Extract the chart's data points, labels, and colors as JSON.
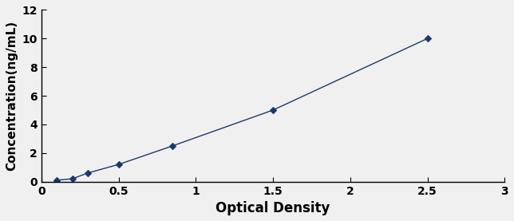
{
  "x": [
    0.1,
    0.2,
    0.3,
    0.5,
    0.85,
    1.5,
    2.5
  ],
  "y": [
    0.1,
    0.2,
    0.6,
    1.2,
    2.5,
    5.0,
    10.0
  ],
  "line_color": "#1a3a6b",
  "marker_color": "#1a3a6b",
  "marker_style": "D",
  "marker_size": 4,
  "line_width": 1.0,
  "xlabel": "Optical Density",
  "ylabel": "Concentration(ng/mL)",
  "xlim": [
    0,
    3
  ],
  "ylim": [
    0,
    12
  ],
  "xticks": [
    0,
    0.5,
    1,
    1.5,
    2,
    2.5,
    3
  ],
  "yticks": [
    0,
    2,
    4,
    6,
    8,
    10,
    12
  ],
  "xlabel_fontsize": 12,
  "ylabel_fontsize": 11,
  "tick_fontsize": 10,
  "background_color": "#f0f0f0",
  "plot_bg_color": "#f0f0f0"
}
